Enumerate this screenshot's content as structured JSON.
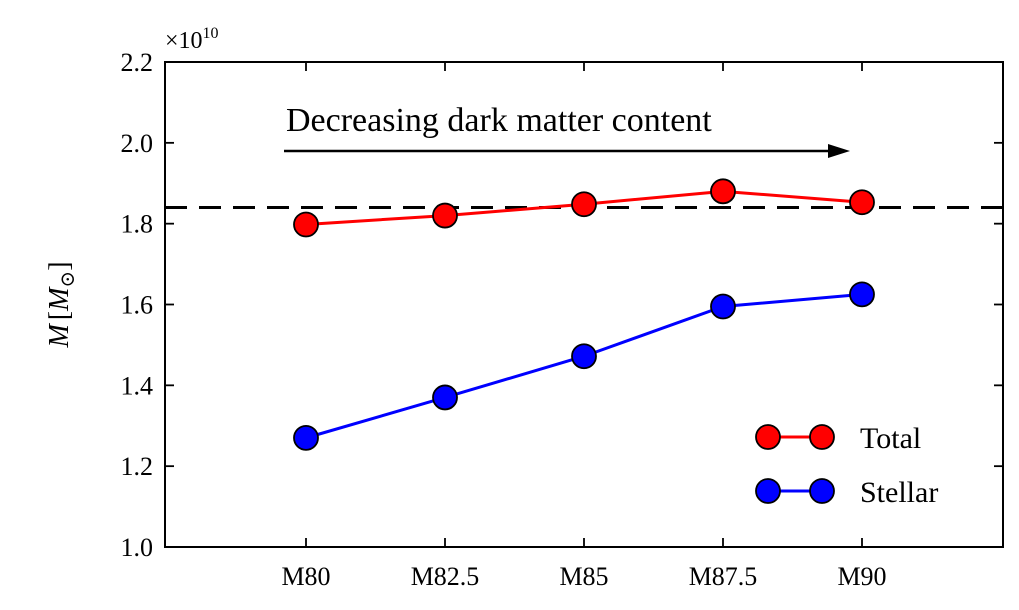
{
  "chart_data": {
    "type": "line",
    "categories": [
      "M80",
      "M82.5",
      "M85",
      "M87.5",
      "M90"
    ],
    "series": [
      {
        "name": "Total",
        "values": [
          1.798,
          1.82,
          1.848,
          1.88,
          1.853
        ],
        "color": "#ff0000"
      },
      {
        "name": "Stellar",
        "values": [
          1.27,
          1.37,
          1.472,
          1.595,
          1.625
        ],
        "color": "#0000ff"
      }
    ],
    "reference_line": {
      "value": 1.84,
      "style": "dashed",
      "color": "#000000"
    },
    "ylim": [
      1.0,
      2.2
    ],
    "yticks": [
      1.0,
      1.2,
      1.4,
      1.6,
      1.8,
      2.0,
      2.2
    ],
    "ytick_labels": [
      "1.0",
      "1.2",
      "1.4",
      "1.6",
      "1.8",
      "2.0",
      "2.2"
    ],
    "multiplier": {
      "base": "×10",
      "exponent": "10"
    },
    "ylabel": {
      "main": "M",
      "bracket_open": "[",
      "sub_main": "M",
      "sub": "⊙",
      "bracket_close": "]"
    },
    "xlabel": "",
    "title": "",
    "annotation": {
      "text": "Decreasing dark matter content",
      "arrow_from": "M80",
      "arrow_to": "M90"
    },
    "legend": {
      "position": "lower-right",
      "entries": [
        "Total",
        "Stellar"
      ]
    },
    "grid": false
  }
}
